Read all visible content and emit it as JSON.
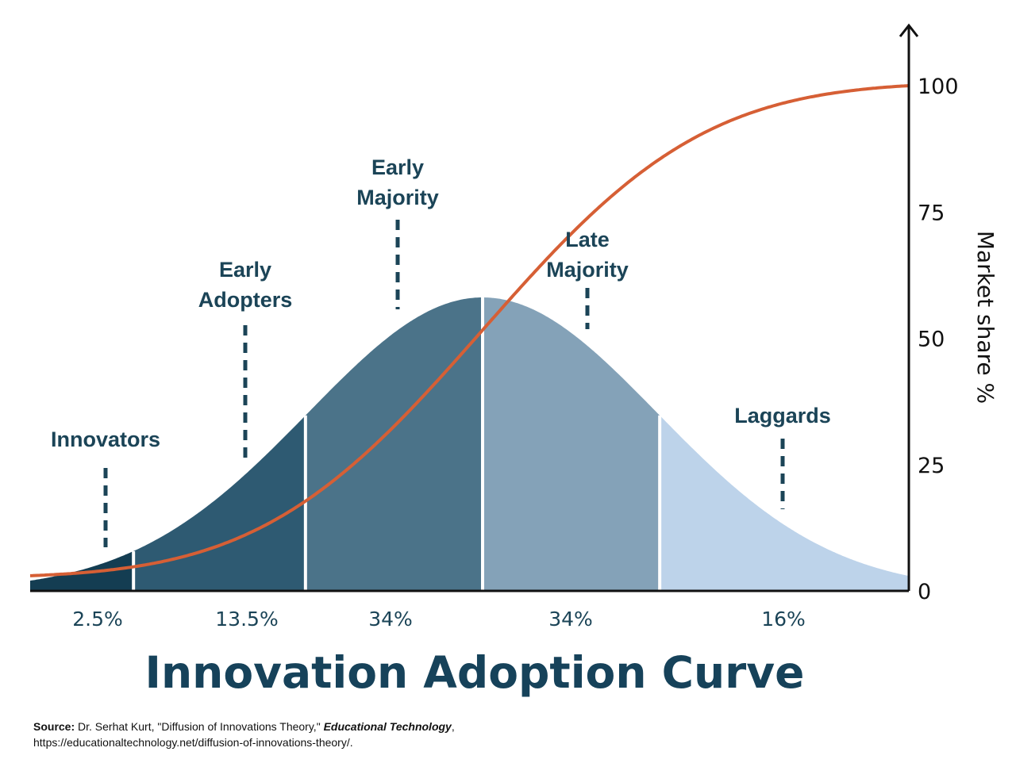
{
  "colors": {
    "innovators": "#143d52",
    "early_adopters": "#2e5a72",
    "early_majority": "#4b7389",
    "late_majority": "#84a2b8",
    "laggards": "#bdd3ea",
    "adoption_curve": "#d65f35",
    "label_text": "#1b4457"
  },
  "chart_data": {
    "type": "area",
    "title": "Innovation Adoption Curve",
    "y_axis": {
      "label": "Market share %",
      "ticks": [
        "0",
        "25",
        "50",
        "75",
        "100"
      ],
      "range": [
        0,
        100
      ],
      "side": "right"
    },
    "segments": [
      {
        "name": "Innovators",
        "share": "2.5%",
        "value": 2.5
      },
      {
        "name": "Early Adopters",
        "share": "13.5%",
        "value": 13.5
      },
      {
        "name": "Early Majority",
        "share": "34%",
        "value": 34
      },
      {
        "name": "Late Majority",
        "share": "34%",
        "value": 34
      },
      {
        "name": "Laggards",
        "share": "16%",
        "value": 16
      }
    ],
    "segment_labels": [
      {
        "lines": [
          "Innovators"
        ]
      },
      {
        "lines": [
          "Early",
          "Adopters"
        ]
      },
      {
        "lines": [
          "Early",
          "Majority"
        ]
      },
      {
        "lines": [
          "Late",
          "Majority"
        ]
      },
      {
        "lines": [
          "Laggards"
        ]
      }
    ],
    "adoption_curve": {
      "type": "cumulative",
      "start": 3,
      "end": 100
    },
    "grid": false,
    "legend": "none"
  },
  "source": {
    "label": "Source:",
    "author": "Dr. Serhat Kurt, \"Diffusion of Innovations Theory,\"",
    "publication": "Educational Technology",
    "url_line": "https://educationaltechnology.net/diffusion-of-innovations-theory/."
  }
}
